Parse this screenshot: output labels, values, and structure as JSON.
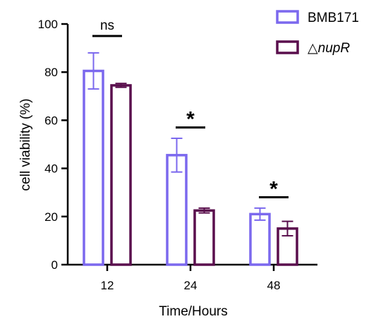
{
  "chart_data": {
    "type": "bar",
    "categories": [
      "12",
      "24",
      "48"
    ],
    "series": [
      {
        "name": "BMB171",
        "color": "#7b68ee",
        "values": [
          80.5,
          45.5,
          21.0
        ],
        "errors": [
          7.5,
          7.0,
          2.5
        ]
      },
      {
        "name": "△nupR",
        "color": "#5a0f4d",
        "values": [
          74.5,
          22.5,
          15.0
        ],
        "errors": [
          0.8,
          1.0,
          3.0
        ]
      }
    ],
    "legend_prefix_series2": "△",
    "legend_italic_series2": "nupR",
    "xlabel": "Time/Hours",
    "ylabel": "cell viability (%)",
    "ylim": [
      0,
      100
    ],
    "yticks": [
      "0",
      "20",
      "40",
      "60",
      "80",
      "100"
    ],
    "legend_position": "top-right",
    "grid": false,
    "significance": [
      {
        "category": "12",
        "label": "ns",
        "bar_level": 95
      },
      {
        "category": "24",
        "label": "*",
        "bar_level": 57
      },
      {
        "category": "48",
        "label": "*",
        "bar_level": 28
      }
    ]
  }
}
